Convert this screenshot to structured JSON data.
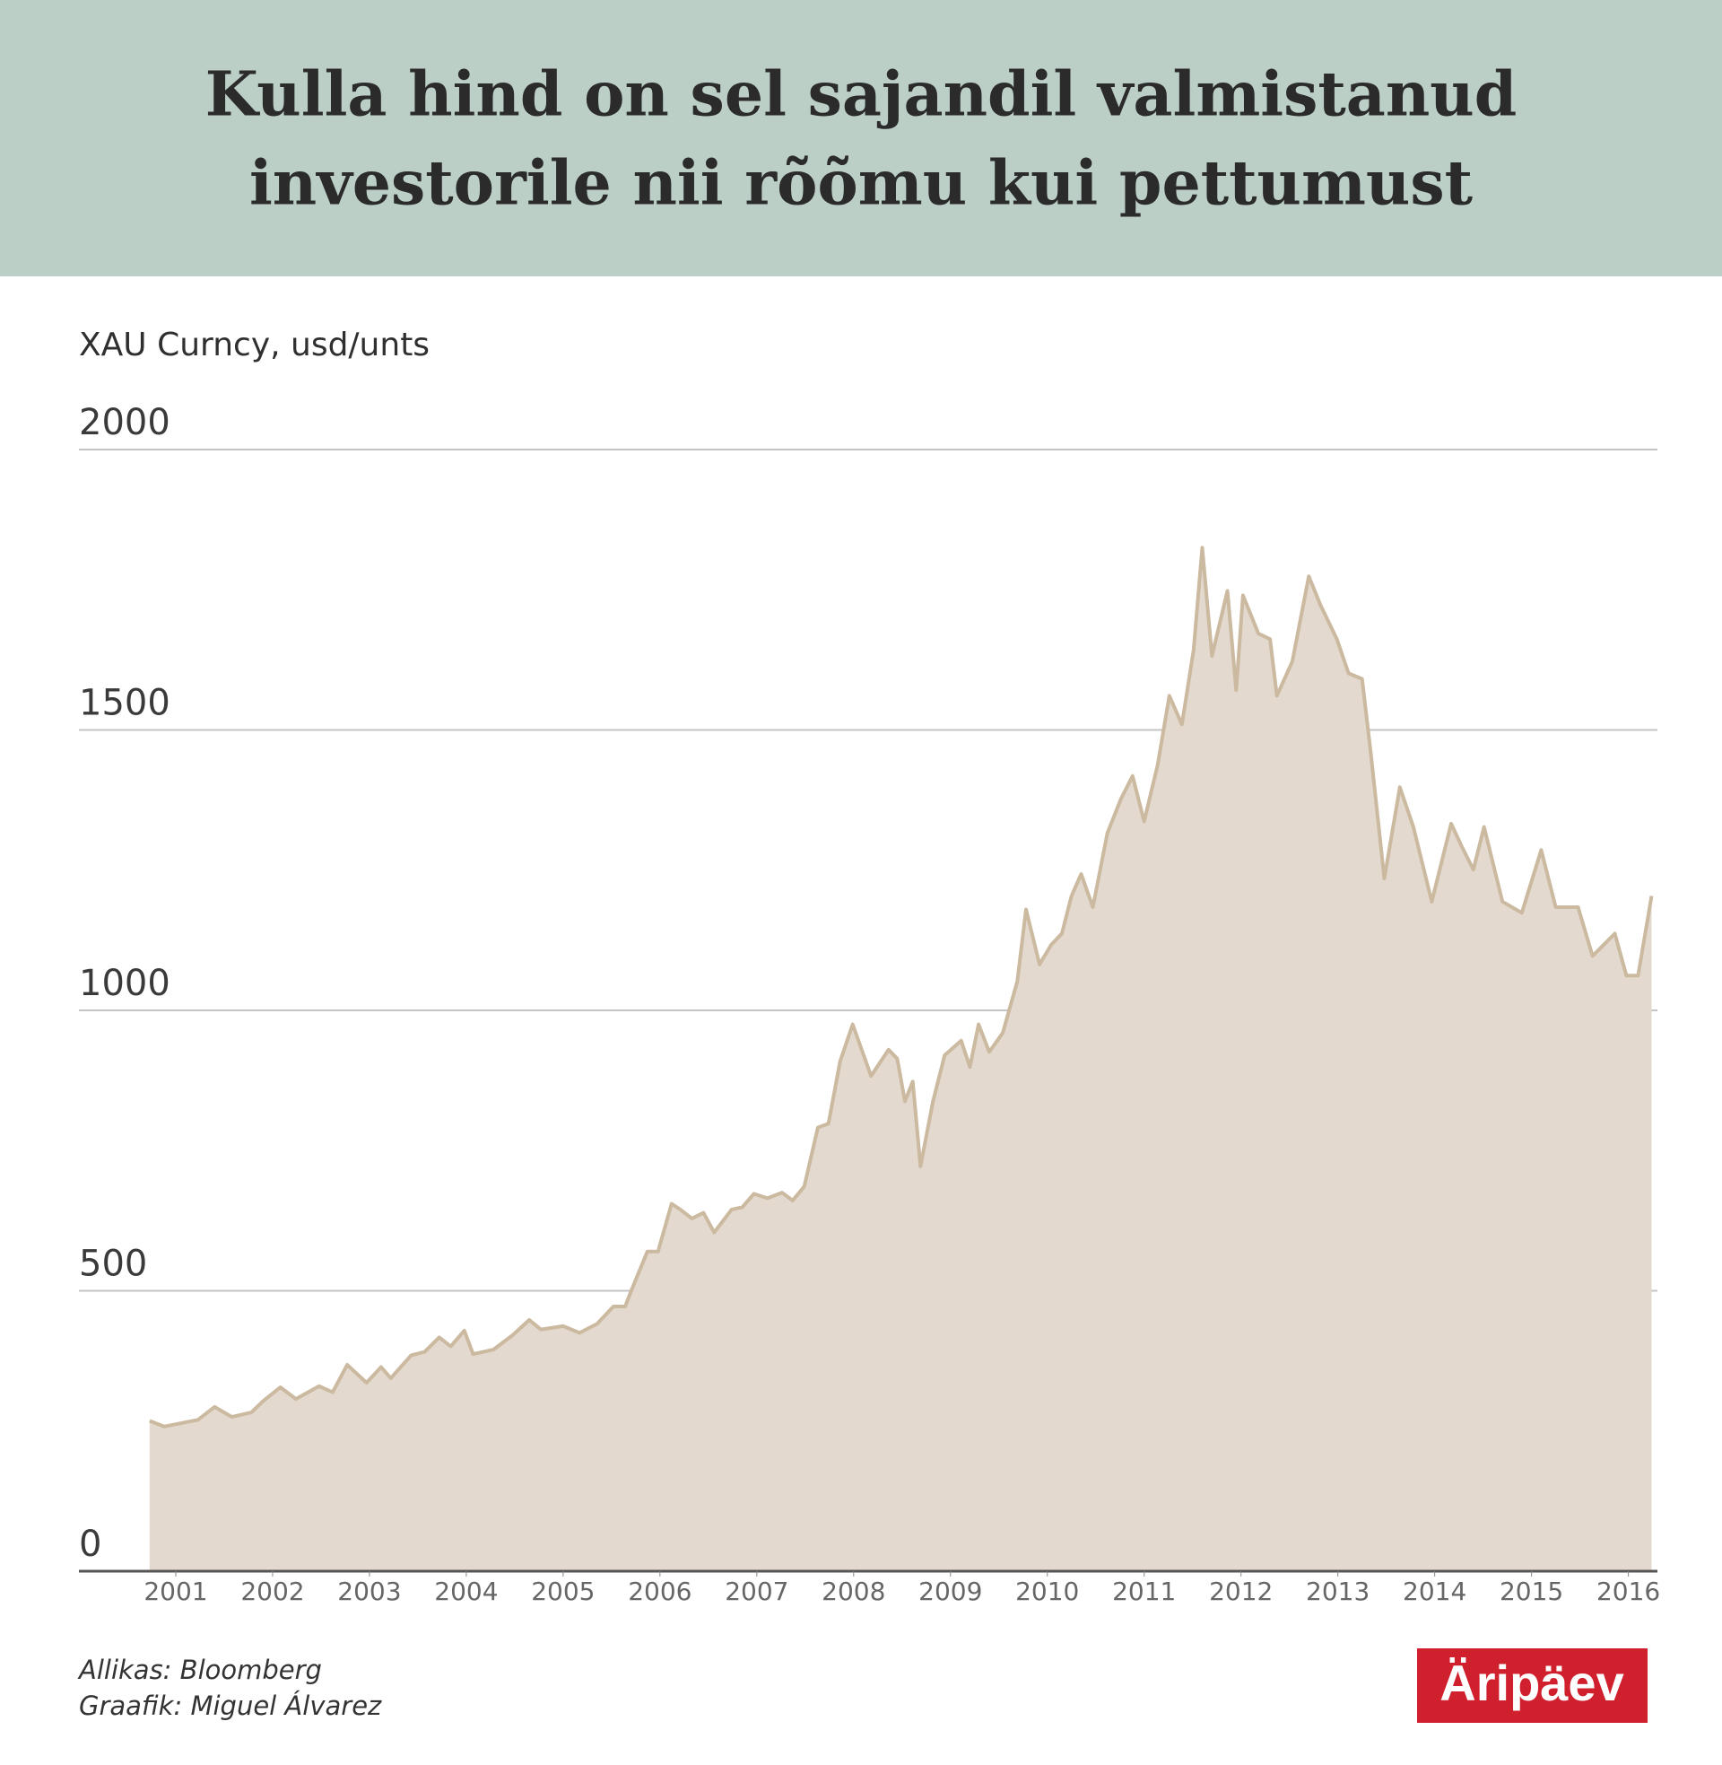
{
  "chart_data": {
    "type": "area",
    "title": [
      "Kulla hind on sel sajandil valmistanud",
      "investorile nii rõõmu kui pettumust"
    ],
    "y_label": "XAU Curncy, usd/unts",
    "source": "Allikas: Bloomberg",
    "credit": "Graafik: Miguel Álvarez",
    "logo": "Äripäev",
    "fill_color": "#e3d9ce",
    "color": "#cbb9a0",
    "grid": true,
    "xlim": [
      2000,
      2016.3
    ],
    "xticks": [
      2001,
      2002,
      2003,
      2004,
      2005,
      2006,
      2007,
      2008,
      2009,
      2010,
      2011,
      2012,
      2013,
      2014,
      2015,
      2016
    ],
    "ylim": [
      0,
      2000
    ],
    "yticks": [
      0,
      500,
      1000,
      1500,
      2000
    ],
    "x": [
      2000.73,
      2000.88,
      2001.23,
      2001.4,
      2001.58,
      2001.78,
      2001.9,
      2002.08,
      2002.24,
      2002.48,
      2002.62,
      2002.77,
      2002.97,
      2003.12,
      2003.22,
      2003.43,
      2003.57,
      2003.72,
      2003.84,
      2003.98,
      2004.07,
      2004.28,
      2004.48,
      2004.65,
      2004.77,
      2005.0,
      2005.17,
      2005.35,
      2005.52,
      2005.64,
      2005.72,
      2005.87,
      2005.98,
      2006.12,
      2006.21,
      2006.33,
      2006.45,
      2006.56,
      2006.74,
      2006.85,
      2006.97,
      2007.11,
      2007.26,
      2007.37,
      2007.49,
      2007.63,
      2007.74,
      2007.86,
      2007.99,
      2008.18,
      2008.36,
      2008.45,
      2008.53,
      2008.61,
      2008.69,
      2008.82,
      2008.94,
      2009.11,
      2009.2,
      2009.29,
      2009.4,
      2009.54,
      2009.69,
      2009.78,
      2009.92,
      2010.04,
      2010.15,
      2010.25,
      2010.35,
      2010.47,
      2010.62,
      2010.76,
      2010.88,
      2011.0,
      2011.14,
      2011.26,
      2011.39,
      2011.51,
      2011.6,
      2011.7,
      2011.86,
      2011.95,
      2012.02,
      2012.18,
      2012.3,
      2012.37,
      2012.53,
      2012.7,
      2012.82,
      2012.99,
      2013.11,
      2013.25,
      2013.34,
      2013.48,
      2013.64,
      2013.78,
      2013.97,
      2014.17,
      2014.28,
      2014.4,
      2014.51,
      2014.7,
      2014.9,
      2015.1,
      2015.25,
      2015.48,
      2015.63,
      2015.86,
      2015.98,
      2016.1,
      2016.24
    ],
    "values": [
      268,
      258,
      270,
      293,
      275,
      283,
      303,
      328,
      307,
      330,
      319,
      368,
      336,
      364,
      344,
      385,
      391,
      417,
      401,
      429,
      387,
      395,
      421,
      448,
      431,
      437,
      425,
      441,
      472,
      472,
      507,
      570,
      570,
      655,
      645,
      629,
      639,
      604,
      645,
      649,
      673,
      665,
      675,
      661,
      686,
      791,
      798,
      909,
      975,
      883,
      930,
      914,
      838,
      873,
      722,
      838,
      920,
      946,
      899,
      975,
      926,
      960,
      1052,
      1180,
      1082,
      1117,
      1137,
      1204,
      1243,
      1184,
      1316,
      1377,
      1418,
      1337,
      1438,
      1561,
      1510,
      1642,
      1825,
      1632,
      1748,
      1571,
      1740,
      1672,
      1662,
      1561,
      1622,
      1774,
      1723,
      1662,
      1601,
      1591,
      1459,
      1235,
      1398,
      1327,
      1194,
      1333,
      1292,
      1251,
      1327,
      1194,
      1174,
      1286,
      1184,
      1184,
      1097,
      1137,
      1062,
      1062,
      1204
    ]
  }
}
